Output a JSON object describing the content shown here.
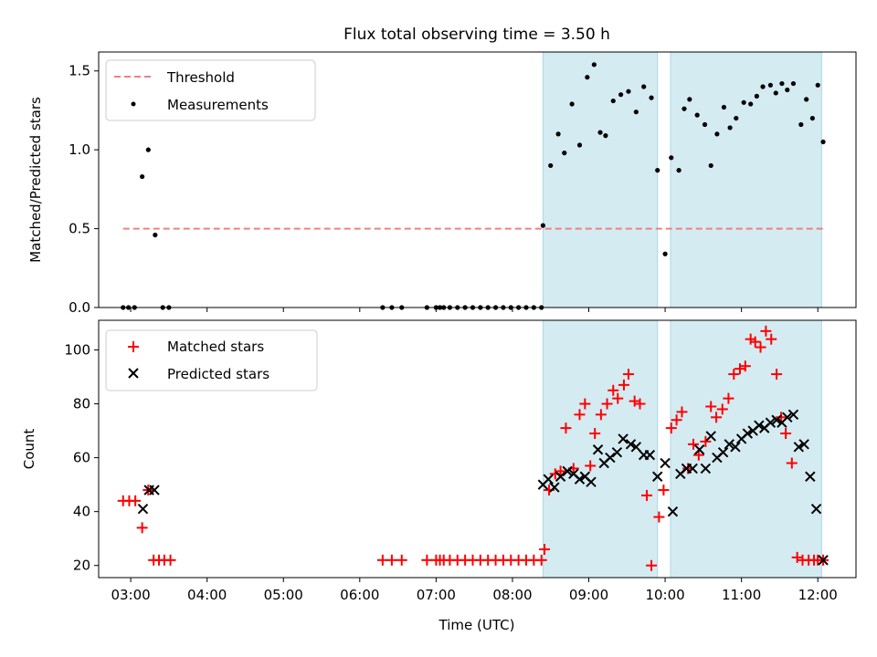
{
  "chart_data": [
    {
      "type": "scatter",
      "title": "Flux total observing time = 3.50 h",
      "xlabel": "",
      "ylabel": "Matched/Predicted stars",
      "xlim": [
        2.58,
        12.5
      ],
      "ylim": [
        0,
        1.62
      ],
      "yticks": [
        0.0,
        0.5,
        1.0,
        1.5
      ],
      "ytick_labels": [
        "0.0",
        "0.5",
        "1.0",
        "1.5"
      ],
      "legend_position": "upper-left",
      "shaded_intervals": [
        [
          8.4,
          9.9
        ],
        [
          10.07,
          12.05
        ]
      ],
      "threshold": {
        "name": "Threshold",
        "value": 0.5,
        "x_range": [
          2.9,
          12.1
        ],
        "color": "#f08080"
      },
      "series": [
        {
          "name": "Measurements",
          "color": "#000000",
          "marker": "dot",
          "x": [
            2.9,
            2.97,
            3.05,
            3.15,
            3.23,
            3.32,
            3.42,
            3.5,
            6.3,
            6.42,
            6.55,
            6.88,
            7.0,
            7.05,
            7.1,
            7.18,
            7.28,
            7.38,
            7.48,
            7.58,
            7.68,
            7.78,
            7.88,
            7.98,
            8.08,
            8.18,
            8.28,
            8.38,
            8.4,
            8.5,
            8.6,
            8.68,
            8.78,
            8.88,
            8.98,
            9.07,
            9.15,
            9.22,
            9.32,
            9.42,
            9.52,
            9.62,
            9.72,
            9.82,
            9.9,
            10.0,
            10.08,
            10.18,
            10.25,
            10.32,
            10.42,
            10.52,
            10.6,
            10.68,
            10.77,
            10.85,
            10.93,
            11.03,
            11.12,
            11.2,
            11.28,
            11.38,
            11.45,
            11.53,
            11.6,
            11.68,
            11.78,
            11.85,
            11.93,
            12.0,
            12.07
          ],
          "y": [
            0,
            0,
            0,
            0.83,
            1.0,
            0.46,
            0,
            0,
            0,
            0,
            0,
            0,
            0,
            0,
            0,
            0,
            0,
            0,
            0,
            0,
            0,
            0,
            0,
            0,
            0,
            0,
            0,
            0,
            0.52,
            0.9,
            1.1,
            0.98,
            1.29,
            1.03,
            1.46,
            1.54,
            1.11,
            1.09,
            1.31,
            1.35,
            1.37,
            1.24,
            1.4,
            1.33,
            0.87,
            0.34,
            0.95,
            0.87,
            1.26,
            1.32,
            1.22,
            1.16,
            0.9,
            1.1,
            1.27,
            1.14,
            1.2,
            1.3,
            1.29,
            1.34,
            1.4,
            1.41,
            1.36,
            1.42,
            1.38,
            1.42,
            1.16,
            1.32,
            1.2,
            1.41,
            1.05
          ]
        }
      ]
    },
    {
      "type": "scatter",
      "title": "",
      "xlabel": "Time (UTC)",
      "ylabel": "Count",
      "xlim": [
        2.58,
        12.5
      ],
      "ylim": [
        15.5,
        111
      ],
      "xticks": [
        3,
        4,
        5,
        6,
        7,
        8,
        9,
        10,
        11,
        12
      ],
      "xtick_labels": [
        "03:00",
        "04:00",
        "05:00",
        "06:00",
        "07:00",
        "08:00",
        "09:00",
        "10:00",
        "11:00",
        "12:00"
      ],
      "yticks": [
        20,
        40,
        60,
        80,
        100
      ],
      "ytick_labels": [
        "20",
        "40",
        "60",
        "80",
        "100"
      ],
      "legend_position": "upper-left",
      "shaded_intervals": [
        [
          8.4,
          9.9
        ],
        [
          10.07,
          12.05
        ]
      ],
      "series": [
        {
          "name": "Matched stars",
          "color": "#ff0000",
          "marker": "plus",
          "x": [
            2.9,
            2.98,
            3.06,
            3.15,
            3.23,
            3.3,
            3.37,
            3.44,
            3.52,
            6.3,
            6.42,
            6.55,
            6.88,
            7.0,
            7.05,
            7.1,
            7.18,
            7.28,
            7.38,
            7.48,
            7.58,
            7.68,
            7.78,
            7.88,
            7.98,
            8.08,
            8.18,
            8.28,
            8.38,
            8.42,
            8.48,
            8.56,
            8.63,
            8.7,
            8.8,
            8.88,
            8.95,
            9.02,
            9.08,
            9.16,
            9.24,
            9.32,
            9.38,
            9.46,
            9.52,
            9.6,
            9.67,
            9.76,
            9.82,
            9.92,
            9.98,
            10.08,
            10.15,
            10.22,
            10.3,
            10.37,
            10.44,
            10.53,
            10.6,
            10.67,
            10.75,
            10.83,
            10.9,
            10.98,
            11.05,
            11.12,
            11.18,
            11.25,
            11.32,
            11.39,
            11.46,
            11.52,
            11.58,
            11.66,
            11.73,
            11.8,
            11.88,
            11.95,
            12.0,
            12.07
          ],
          "y": [
            44,
            44,
            44,
            34,
            48,
            22,
            22,
            22,
            22,
            22,
            22,
            22,
            22,
            22,
            22,
            22,
            22,
            22,
            22,
            22,
            22,
            22,
            22,
            22,
            22,
            22,
            22,
            22,
            22,
            26,
            48,
            54,
            55,
            71,
            56,
            76,
            80,
            57,
            69,
            76,
            80,
            85,
            82,
            87,
            91,
            81,
            80,
            46,
            20,
            38,
            48,
            71,
            74,
            77,
            56,
            65,
            61,
            66,
            79,
            75,
            78,
            82,
            91,
            93,
            94,
            104,
            103,
            101,
            107,
            104,
            91,
            75,
            69,
            58,
            23,
            22,
            22,
            22,
            22,
            22
          ]
        },
        {
          "name": "Predicted stars",
          "color": "#000000",
          "marker": "x",
          "x": [
            8.4,
            8.47,
            8.55,
            8.63,
            8.72,
            8.8,
            8.88,
            8.95,
            9.03,
            9.12,
            9.2,
            9.28,
            9.37,
            9.45,
            9.55,
            9.62,
            9.72,
            9.8,
            9.9,
            10.0,
            10.1,
            10.2,
            10.28,
            10.36,
            10.45,
            10.53,
            10.6,
            10.68,
            10.76,
            10.84,
            10.92,
            11.0,
            11.08,
            11.15,
            11.23,
            11.3,
            11.38,
            11.46,
            11.53,
            11.6,
            11.68,
            11.75,
            11.82,
            11.9,
            11.98,
            12.07,
            3.16,
            3.24,
            3.31
          ],
          "y": [
            50,
            52,
            49,
            53,
            55,
            54,
            52,
            53,
            51,
            63,
            58,
            60,
            62,
            67,
            65,
            64,
            61,
            61,
            53,
            58,
            40,
            54,
            56,
            56,
            63,
            56,
            68,
            60,
            62,
            65,
            64,
            67,
            69,
            70,
            72,
            71,
            73,
            74,
            73,
            75,
            76,
            64,
            65,
            53,
            41,
            22,
            41,
            48,
            48
          ]
        }
      ]
    }
  ]
}
